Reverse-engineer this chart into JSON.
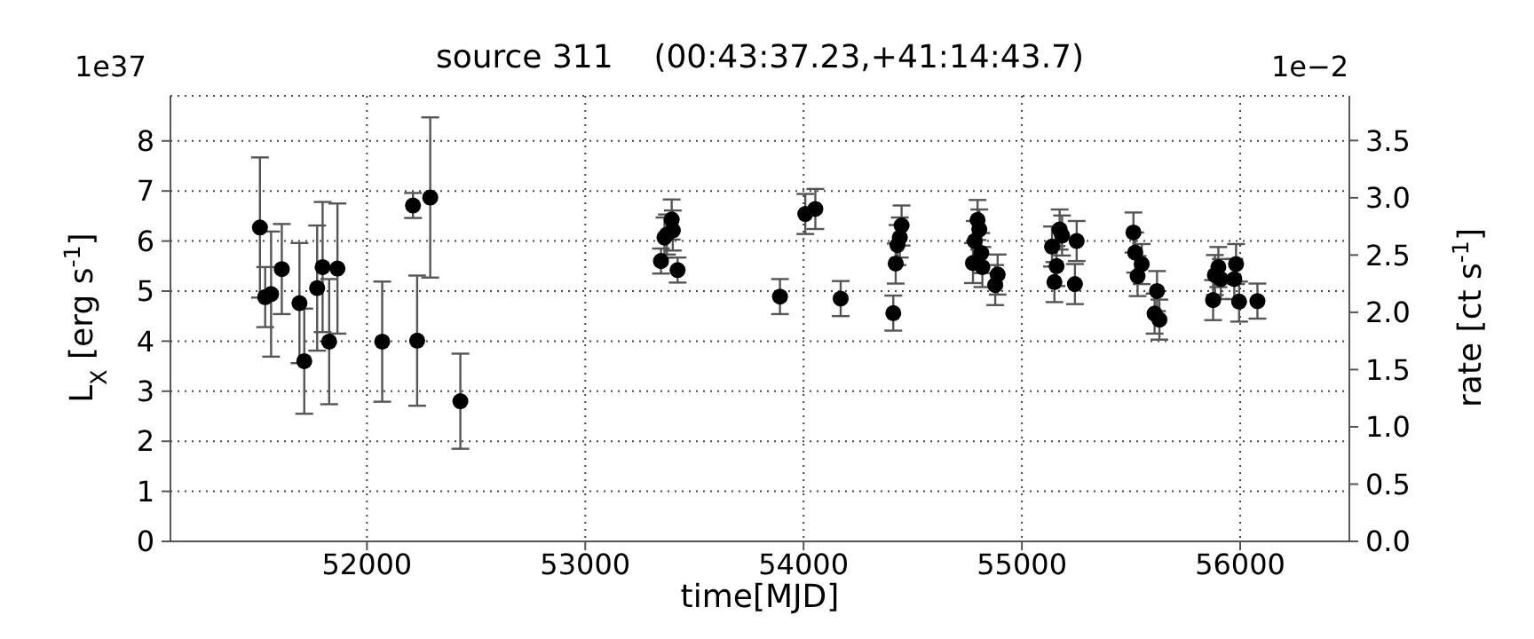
{
  "chart_data": {
    "type": "scatter",
    "title": "source 311    (00:43:37.23,+41:14:43.7)",
    "xlabel": "time[MJD]",
    "ylabel": "L$_{X}$ [erg s$^{-1}$]",
    "y2label": "rate [ct s$^{-1}$]",
    "annotations": [
      "1e37",
      "1e−2"
    ],
    "x": [
      51510,
      51534,
      51561,
      51610,
      51691,
      51713,
      51772,
      51797,
      51827,
      51865,
      52070,
      52211,
      52230,
      52290,
      52428,
      53347,
      53363,
      53374,
      53396,
      53401,
      53423,
      53892,
      54008,
      54054,
      54170,
      54411,
      54422,
      54430,
      54441,
      54449,
      54776,
      54784,
      54797,
      54805,
      54814,
      54819,
      54878,
      54889,
      55138,
      55149,
      55159,
      55173,
      55184,
      55243,
      55251,
      55511,
      55519,
      55530,
      55549,
      55608,
      55619,
      55630,
      55876,
      55884,
      55900,
      55911,
      55973,
      55981,
      55995,
      56079
    ],
    "series": [
      {
        "color": "#000000",
        "values": [
          6.27,
          4.88,
          4.94,
          5.44,
          4.76,
          3.6,
          5.06,
          5.48,
          3.99,
          5.45,
          3.99,
          6.71,
          4.01,
          6.87,
          2.8,
          5.6,
          6.07,
          6.13,
          6.43,
          6.21,
          5.42,
          4.89,
          6.54,
          6.64,
          4.85,
          4.56,
          5.55,
          5.92,
          6.07,
          6.31,
          5.56,
          6.0,
          6.42,
          6.23,
          5.76,
          5.48,
          5.12,
          5.33,
          5.89,
          5.18,
          5.5,
          6.23,
          6.11,
          5.14,
          6.0,
          6.17,
          5.77,
          5.3,
          5.54,
          4.55,
          5.0,
          4.43,
          4.82,
          5.32,
          5.48,
          5.24,
          5.24,
          5.54,
          4.79,
          4.8
        ],
        "errors": [
          1.4,
          0.6,
          1.25,
          0.9,
          1.2,
          1.05,
          1.25,
          1.3,
          1.25,
          1.3,
          1.2,
          0.25,
          1.3,
          1.6,
          0.95,
          0.25,
          0.4,
          0.4,
          0.4,
          0.4,
          0.25,
          0.35,
          0.4,
          0.4,
          0.35,
          0.35,
          0.4,
          0.4,
          0.4,
          0.4,
          0.4,
          0.4,
          0.4,
          0.4,
          0.4,
          0.4,
          0.4,
          0.4,
          0.4,
          0.4,
          0.4,
          0.4,
          0.4,
          0.4,
          0.4,
          0.4,
          0.4,
          0.4,
          0.4,
          0.4,
          0.4,
          0.4,
          0.4,
          0.4,
          0.4,
          0.4,
          0.4,
          0.4,
          0.4,
          0.35
        ]
      }
    ],
    "xlim": [
      51100,
      56500
    ],
    "xticks": [
      52000,
      53000,
      54000,
      55000,
      56000
    ],
    "ylim": [
      0,
      8.9
    ],
    "yticks": [
      0,
      1,
      2,
      3,
      4,
      5,
      6,
      7,
      8
    ],
    "y2lim": [
      0,
      3.89
    ],
    "y2ticks": [
      {
        "value": 0,
        "label": "0.0"
      },
      {
        "value": 0.5,
        "label": "0.5"
      },
      {
        "value": 1,
        "label": "1.0"
      },
      {
        "value": 1.5,
        "label": "1.5"
      },
      {
        "value": 2,
        "label": "2.0"
      },
      {
        "value": 2.5,
        "label": "2.5"
      },
      {
        "value": 3,
        "label": "3.0"
      },
      {
        "value": 3.5,
        "label": "3.5"
      }
    ],
    "grid": true,
    "marker": "circle"
  }
}
